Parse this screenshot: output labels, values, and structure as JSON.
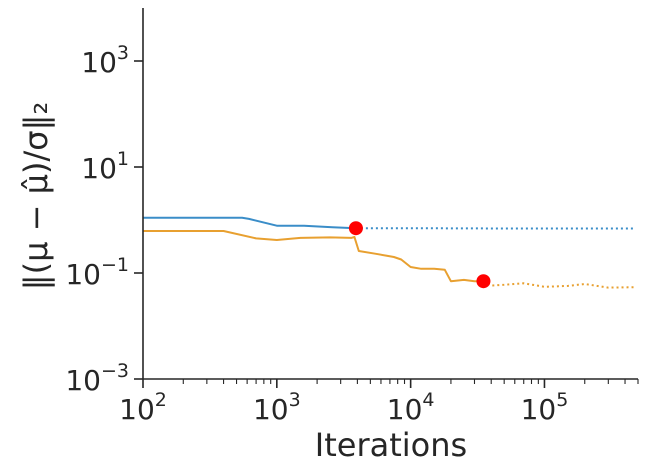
{
  "chart_data": {
    "type": "line",
    "title": "",
    "xlabel": "Iterations",
    "ylabel": "‖(μ − μ̂)/σ‖₂",
    "xscale": "log",
    "yscale": "log",
    "xlim": [
      100,
      500000
    ],
    "ylim": [
      0.001,
      10000
    ],
    "grid": false,
    "legend": "none",
    "x_ticks": [
      {
        "value": 100,
        "base": "10",
        "exp": "2"
      },
      {
        "value": 1000,
        "base": "10",
        "exp": "3"
      },
      {
        "value": 10000,
        "base": "10",
        "exp": "4"
      },
      {
        "value": 100000,
        "base": "10",
        "exp": "5"
      }
    ],
    "y_ticks": [
      {
        "value": 0.001,
        "base": "10",
        "exp": "−3"
      },
      {
        "value": 0.1,
        "base": "10",
        "exp": "−1"
      },
      {
        "value": 10,
        "base": "10",
        "exp": "1"
      },
      {
        "value": 1000,
        "base": "10",
        "exp": "3"
      }
    ],
    "series": [
      {
        "color": "#3a8dc8",
        "solid": [
          [
            100,
            1.1
          ],
          [
            550,
            1.1
          ],
          [
            620,
            1.05
          ],
          [
            1000,
            0.78
          ],
          [
            1600,
            0.78
          ],
          [
            2600,
            0.73
          ],
          [
            3900,
            0.7
          ]
        ],
        "dotted": [
          [
            3900,
            0.7
          ],
          [
            10000,
            0.7
          ],
          [
            50000,
            0.69
          ],
          [
            200000,
            0.69
          ],
          [
            480000,
            0.69
          ]
        ],
        "marker": [
          3900,
          0.7
        ]
      },
      {
        "color": "#e8a030",
        "solid": [
          [
            100,
            0.62
          ],
          [
            400,
            0.62
          ],
          [
            700,
            0.45
          ],
          [
            1000,
            0.42
          ],
          [
            1500,
            0.46
          ],
          [
            2500,
            0.47
          ],
          [
            3600,
            0.46
          ],
          [
            3800,
            0.48
          ],
          [
            4100,
            0.26
          ],
          [
            5500,
            0.23
          ],
          [
            7500,
            0.2
          ],
          [
            8500,
            0.18
          ],
          [
            10000,
            0.13
          ],
          [
            12000,
            0.12
          ],
          [
            15000,
            0.12
          ],
          [
            18000,
            0.115
          ],
          [
            20000,
            0.07
          ],
          [
            25000,
            0.074
          ],
          [
            30000,
            0.07
          ],
          [
            35000,
            0.07
          ]
        ],
        "dotted": [
          [
            35000,
            0.07
          ],
          [
            40000,
            0.058
          ],
          [
            50000,
            0.06
          ],
          [
            70000,
            0.064
          ],
          [
            100000,
            0.055
          ],
          [
            150000,
            0.057
          ],
          [
            200000,
            0.062
          ],
          [
            300000,
            0.053
          ],
          [
            480000,
            0.054
          ]
        ],
        "marker": [
          35000,
          0.07
        ]
      }
    ],
    "marker_color": "#ff0000"
  }
}
